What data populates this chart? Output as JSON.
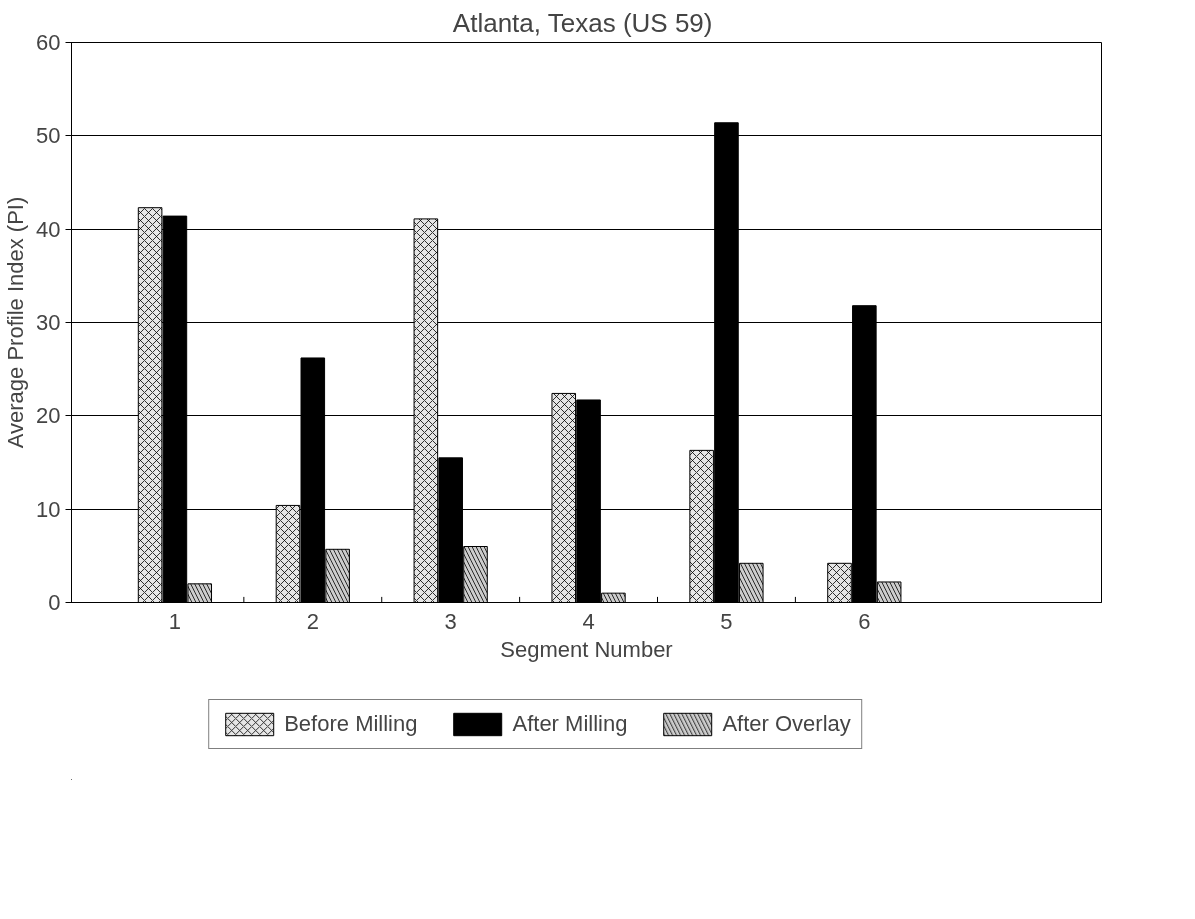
{
  "chart_data": {
    "type": "bar",
    "title": "Atlanta,  Texas (US 59)",
    "xlabel": "Segment Number",
    "ylabel": "Average Profile Index (PI)",
    "categories": [
      "1",
      "2",
      "3",
      "4",
      "5",
      "6"
    ],
    "series": [
      {
        "name": "Before Milling",
        "color": "#e6e6e6",
        "values": [
          42.3,
          10.4,
          41.1,
          22.4,
          16.3,
          4.2
        ]
      },
      {
        "name": "After Milling",
        "color": "#000000",
        "values": [
          41.4,
          26.2,
          15.5,
          21.7,
          51.4,
          31.8
        ]
      },
      {
        "name": "After Overlay",
        "color": "#cccccc",
        "values": [
          2.0,
          5.7,
          6.0,
          1.0,
          4.2,
          2.2
        ]
      }
    ],
    "ylim": [
      0,
      60
    ],
    "yticks": [
      0,
      10,
      20,
      30,
      40,
      50,
      60
    ],
    "grid": "y",
    "legend": "bottom"
  }
}
